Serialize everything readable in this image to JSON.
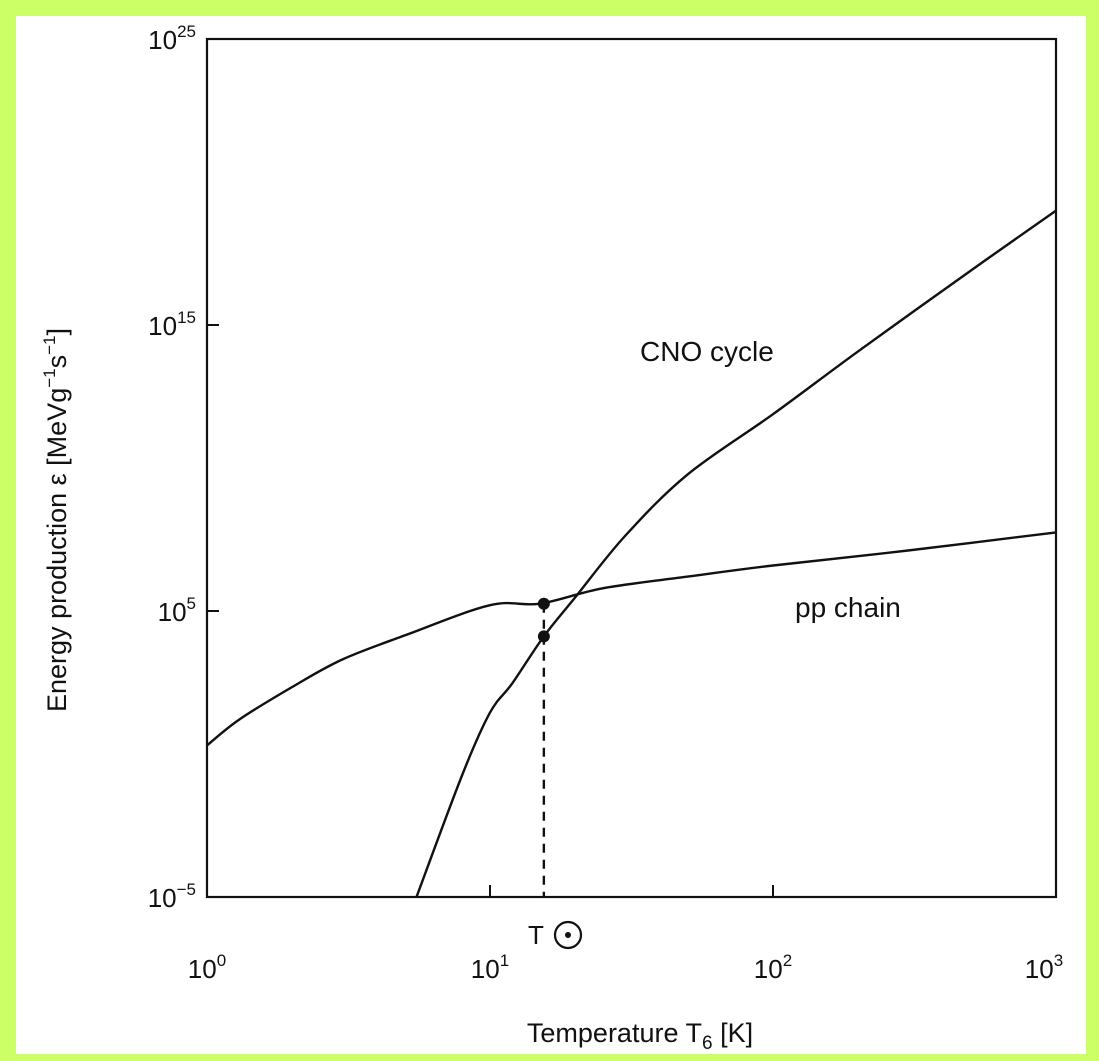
{
  "colors": {
    "border_green": "#ccff66",
    "ink": "#111111",
    "background": "#ffffff"
  },
  "chart_data": {
    "type": "line",
    "x_scale": "log",
    "y_scale": "log",
    "xlim": [
      1,
      1000
    ],
    "ylim": [
      1e-05,
      1e+25
    ],
    "grid": false,
    "legend": "none",
    "xlabel": "Temperature T",
    "xlabel_sub": "6",
    "xlabel_unit": " [K]",
    "ylabel": "Energy production ε [MeVg",
    "ylabel_sup1": "−1",
    "ylabel_mid": "s",
    "ylabel_sup2": "−1",
    "ylabel_end": "]",
    "x_ticks": [
      {
        "value": 1,
        "base": "10",
        "exp": "0"
      },
      {
        "value": 10,
        "base": "10",
        "exp": "1"
      },
      {
        "value": 100,
        "base": "10",
        "exp": "2"
      },
      {
        "value": 1000,
        "base": "10",
        "exp": "3"
      }
    ],
    "y_ticks": [
      {
        "value": 1e-05,
        "base": "10",
        "exp": "−5"
      },
      {
        "value": 100000.0,
        "base": "10",
        "exp": "5"
      },
      {
        "value": 1000000000000000.0,
        "base": "10",
        "exp": "15"
      },
      {
        "value": 1e+25,
        "base": "10",
        "exp": "25"
      }
    ],
    "series": [
      {
        "name": "pp chain",
        "x": [
          1,
          1.3,
          2,
          3,
          5,
          10,
          15,
          25,
          50,
          100,
          300,
          1000
        ],
        "y": [
          2.0,
          16.0,
          220.0,
          2000.0,
          14000.0,
          160000.0,
          180000.0,
          620000.0,
          1600000.0,
          3900000.0,
          13000000.0,
          56000000.0
        ]
      },
      {
        "name": "CNO cycle",
        "x": [
          5.5,
          8,
          10,
          12,
          15.5,
          20,
          30,
          50,
          100,
          200,
          500,
          1000
        ],
        "y": [
          1e-05,
          0.2,
          28.0,
          300.0,
          13000.0,
          300000.0,
          42000000.0,
          6000000000.0,
          760000000000.0,
          120000000000000.0,
          8e+16,
          1e+19
        ]
      }
    ],
    "annotations": [
      {
        "label": "T",
        "x": 15.5
      },
      {
        "marker": "dot",
        "x": 15.5,
        "y": 180000.0
      },
      {
        "marker": "dot",
        "x": 15.5,
        "y": 13000.0
      }
    ]
  }
}
